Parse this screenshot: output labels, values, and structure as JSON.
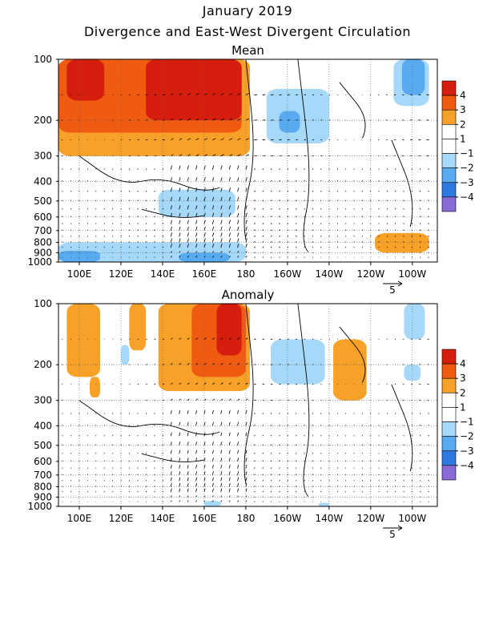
{
  "header": {
    "title": "January 2019",
    "subtitle": "Divergence and East-West Divergent Circulation"
  },
  "chart_data": [
    {
      "type": "heatmap",
      "title": "Mean",
      "x_ticks": [
        "100E",
        "120E",
        "140E",
        "160E",
        "180",
        "160W",
        "140W",
        "120W",
        "100W"
      ],
      "x_tick_lon": [
        100,
        120,
        140,
        160,
        180,
        200,
        220,
        240,
        260
      ],
      "xlim": [
        90,
        272
      ],
      "y_ticks": [
        100,
        200,
        300,
        400,
        500,
        600,
        700,
        800,
        900,
        1000
      ],
      "ylim": [
        1000,
        100
      ],
      "yscale": "log",
      "colorbar": {
        "labels": [
          "4",
          "3",
          "2",
          "1",
          "−1",
          "−2",
          "−3",
          "−4"
        ]
      },
      "colors": {
        "pos4": "#d61e0f",
        "pos3": "#f05b12",
        "pos2": "#f8a128",
        "pos1": "#ffffff",
        "neg1": "#a6d8f9",
        "neg2": "#58abf0",
        "neg3": "#2d79e0",
        "neg4": "#8a6ad6"
      },
      "regions": [
        {
          "level": "pos2",
          "lon": [
            90,
            182
          ],
          "p": [
            100,
            300
          ]
        },
        {
          "level": "pos3",
          "lon": [
            90,
            178
          ],
          "p": [
            100,
            230
          ]
        },
        {
          "level": "pos4",
          "lon": [
            132,
            178
          ],
          "p": [
            100,
            200
          ]
        },
        {
          "level": "pos4",
          "lon": [
            94,
            112
          ],
          "p": [
            100,
            160
          ]
        },
        {
          "level": "pos2",
          "lon": [
            203,
            212
          ],
          "p": [
            180,
            260
          ]
        },
        {
          "level": "pos2",
          "lon": [
            242,
            268
          ],
          "p": [
            720,
            900
          ]
        },
        {
          "level": "neg1",
          "lon": [
            190,
            220
          ],
          "p": [
            140,
            260
          ]
        },
        {
          "level": "neg2",
          "lon": [
            196,
            206
          ],
          "p": [
            180,
            230
          ]
        },
        {
          "level": "neg1",
          "lon": [
            251,
            268
          ],
          "p": [
            100,
            170
          ]
        },
        {
          "level": "neg2",
          "lon": [
            255,
            266
          ],
          "p": [
            100,
            150
          ]
        },
        {
          "level": "neg1",
          "lon": [
            138,
            175
          ],
          "p": [
            440,
            600
          ]
        },
        {
          "level": "neg1",
          "lon": [
            90,
            180
          ],
          "p": [
            800,
            1000
          ]
        },
        {
          "level": "neg2",
          "lon": [
            90,
            110
          ],
          "p": [
            880,
            1000
          ]
        },
        {
          "level": "neg2",
          "lon": [
            148,
            172
          ],
          "p": [
            900,
            1000
          ]
        }
      ],
      "vector_scale": "5"
    },
    {
      "type": "heatmap",
      "title": "Anomaly",
      "x_ticks": [
        "100E",
        "120E",
        "140E",
        "160E",
        "180",
        "160W",
        "140W",
        "120W",
        "100W"
      ],
      "x_tick_lon": [
        100,
        120,
        140,
        160,
        180,
        200,
        220,
        240,
        260
      ],
      "xlim": [
        90,
        272
      ],
      "y_ticks": [
        100,
        200,
        300,
        400,
        500,
        600,
        700,
        800,
        900,
        1000
      ],
      "ylim": [
        1000,
        100
      ],
      "yscale": "log",
      "colorbar": {
        "labels": [
          "4",
          "3",
          "2",
          "1",
          "−1",
          "−2",
          "−3",
          "−4"
        ]
      },
      "colors": {
        "pos4": "#d61e0f",
        "pos3": "#f05b12",
        "pos2": "#f8a128",
        "pos1": "#ffffff",
        "neg1": "#a6d8f9",
        "neg2": "#58abf0",
        "neg3": "#2d79e0",
        "neg4": "#8a6ad6"
      },
      "regions": [
        {
          "level": "pos2",
          "lon": [
            94,
            110
          ],
          "p": [
            100,
            230
          ]
        },
        {
          "level": "pos2",
          "lon": [
            124,
            132
          ],
          "p": [
            100,
            170
          ]
        },
        {
          "level": "pos2",
          "lon": [
            138,
            182
          ],
          "p": [
            100,
            270
          ]
        },
        {
          "level": "pos3",
          "lon": [
            154,
            180
          ],
          "p": [
            100,
            230
          ]
        },
        {
          "level": "pos4",
          "lon": [
            166,
            178
          ],
          "p": [
            100,
            180
          ]
        },
        {
          "level": "pos2",
          "lon": [
            222,
            238
          ],
          "p": [
            150,
            300
          ]
        },
        {
          "level": "pos2",
          "lon": [
            105,
            110
          ],
          "p": [
            230,
            290
          ]
        },
        {
          "level": "neg1",
          "lon": [
            192,
            218
          ],
          "p": [
            150,
            250
          ]
        },
        {
          "level": "neg1",
          "lon": [
            120,
            124
          ],
          "p": [
            160,
            200
          ]
        },
        {
          "level": "neg1",
          "lon": [
            256,
            266
          ],
          "p": [
            100,
            150
          ]
        },
        {
          "level": "neg1",
          "lon": [
            256,
            264
          ],
          "p": [
            200,
            240
          ]
        },
        {
          "level": "neg1",
          "lon": [
            160,
            168
          ],
          "p": [
            940,
            1000
          ]
        },
        {
          "level": "neg1",
          "lon": [
            215,
            220
          ],
          "p": [
            960,
            1000
          ]
        }
      ],
      "vector_scale": "5"
    }
  ]
}
